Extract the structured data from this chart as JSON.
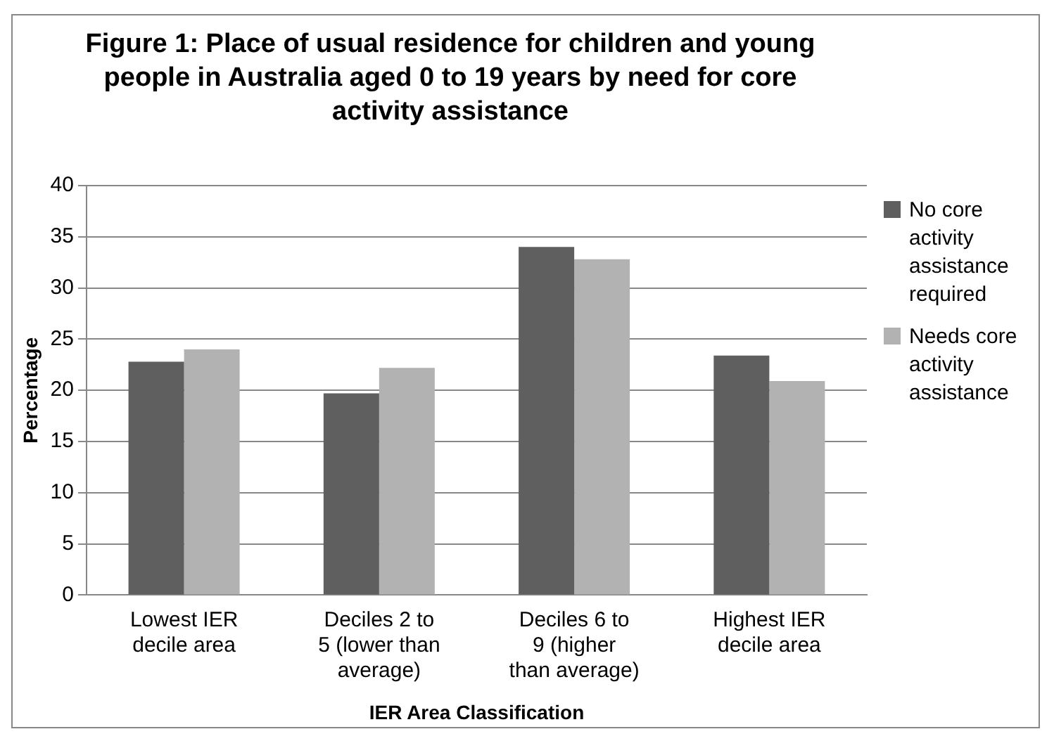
{
  "chart_data": {
    "type": "bar",
    "title": "Figure 1:  Place of usual residence for children and young people in Australia aged 0 to 19 years by need for core activity assistance",
    "xlabel": "IER Area Classification",
    "ylabel": "Percentage",
    "categories": [
      "Lowest IER decile area",
      "Deciles 2 to 5 (lower than average)",
      "Deciles 6 to 9 (higher than average)",
      "Highest IER decile area"
    ],
    "series": [
      {
        "name": "No core activity assistance required",
        "color": "#5f5f5f",
        "values": [
          22.8,
          19.7,
          34.0,
          23.4
        ]
      },
      {
        "name": "Needs core activity assistance",
        "color": "#b2b2b2",
        "values": [
          24.0,
          22.2,
          32.8,
          20.9
        ]
      }
    ],
    "ylim": [
      0,
      40
    ],
    "yticks": [
      0,
      5,
      10,
      15,
      20,
      25,
      30,
      35,
      40
    ],
    "grid": "y",
    "legend": "right"
  }
}
